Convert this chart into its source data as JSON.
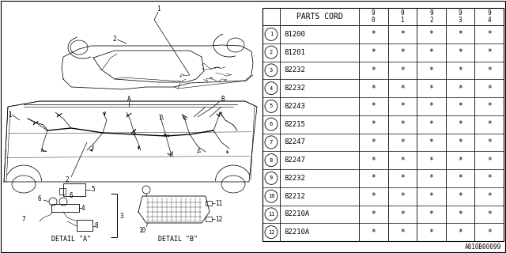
{
  "bg_color": "#ffffff",
  "parts_header": "PARTS CORD",
  "col_headers": [
    "9\n0",
    "9\n1",
    "9\n2",
    "9\n3",
    "9\n4"
  ],
  "rows": [
    {
      "num": 1,
      "part": "81200"
    },
    {
      "num": 2,
      "part": "81201"
    },
    {
      "num": 3,
      "part": "82232"
    },
    {
      "num": 4,
      "part": "82232"
    },
    {
      "num": 5,
      "part": "82243"
    },
    {
      "num": 6,
      "part": "82215"
    },
    {
      "num": 7,
      "part": "82247"
    },
    {
      "num": 8,
      "part": "82247"
    },
    {
      "num": 9,
      "part": "82232"
    },
    {
      "num": 10,
      "part": "82212"
    },
    {
      "num": 11,
      "part": "82210A"
    },
    {
      "num": 12,
      "part": "82210A"
    }
  ],
  "diagram_ref": "A810B00099"
}
